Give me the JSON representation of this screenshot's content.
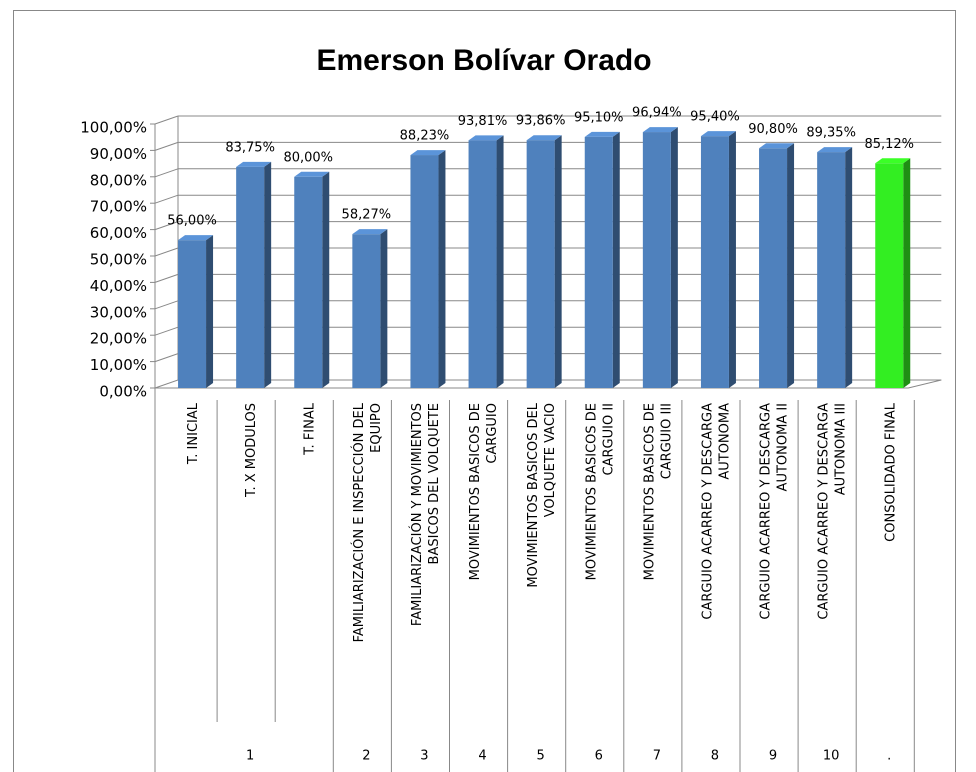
{
  "chart_data": {
    "type": "bar3d",
    "title": "Emerson Bolívar Orado",
    "categories": [
      [
        "T. INICIAL"
      ],
      [
        "T. X MODULOS"
      ],
      [
        "T. FINAL"
      ],
      [
        "FAMILIARIZACIÓN E INSPECCIÓN DEL",
        "EQUIPO"
      ],
      [
        "FAMILIARIZACIÓN Y MOVIMIENTOS",
        "BASICOS DEL VOLQUETE"
      ],
      [
        "MOVIMIENTOS BASICOS DE",
        "CARGUIO"
      ],
      [
        "MOVIMIENTOS BASICOS DEL",
        "VOLQUETE VACIO"
      ],
      [
        "MOVIMIENTOS BASICOS DE",
        "CARGUIO II"
      ],
      [
        "MOVIMIENTOS BASICOS DE",
        "CARGUIO III"
      ],
      [
        "CARGUIO ACARREO Y DESCARGA",
        "AUTONOMA"
      ],
      [
        "CARGUIO ACARREO Y DESCARGA",
        "AUTONOMA II"
      ],
      [
        "CARGUIO ACARREO Y DESCARGA",
        "AUTONOMA III"
      ],
      [
        "CONSOLIDADO FINAL"
      ]
    ],
    "groups": [
      {
        "label": "1",
        "span": 3
      },
      {
        "label": "2",
        "span": 1
      },
      {
        "label": "3",
        "span": 1
      },
      {
        "label": "4",
        "span": 1
      },
      {
        "label": "5",
        "span": 1
      },
      {
        "label": "6",
        "span": 1
      },
      {
        "label": "7",
        "span": 1
      },
      {
        "label": "8",
        "span": 1
      },
      {
        "label": "9",
        "span": 1
      },
      {
        "label": "10",
        "span": 1
      },
      {
        "label": ".",
        "span": 1
      }
    ],
    "values": [
      56,
      83.75,
      80,
      58.27,
      88.23,
      93.81,
      93.86,
      95.1,
      96.94,
      95.4,
      90.8,
      89.35,
      85.12
    ],
    "value_labels": [
      "56,00%",
      "83,75%",
      "80,00%",
      "58,27%",
      "88,23%",
      "93,81%",
      "93,86%",
      "95,10%",
      "96,94%",
      "95,40%",
      "90,80%",
      "89,35%",
      "85,12%"
    ],
    "colors": [
      "#4f81bd",
      "#4f81bd",
      "#4f81bd",
      "#4f81bd",
      "#4f81bd",
      "#4f81bd",
      "#4f81bd",
      "#4f81bd",
      "#4f81bd",
      "#4f81bd",
      "#4f81bd",
      "#4f81bd",
      "#33ee22"
    ],
    "ylim": [
      0,
      100
    ],
    "yticks": [
      {
        "value": 0,
        "label": "0,00%"
      },
      {
        "value": 10,
        "label": "10,00%"
      },
      {
        "value": 20,
        "label": "20,00%"
      },
      {
        "value": 30,
        "label": "30,00%"
      },
      {
        "value": 40,
        "label": "40,00%"
      },
      {
        "value": 50,
        "label": "50,00%"
      },
      {
        "value": 60,
        "label": "60,00%"
      },
      {
        "value": 70,
        "label": "70,00%"
      },
      {
        "value": 80,
        "label": "80,00%"
      },
      {
        "value": 90,
        "label": "90,00%"
      },
      {
        "value": 100,
        "label": "100,00%"
      }
    ],
    "grid": true
  }
}
